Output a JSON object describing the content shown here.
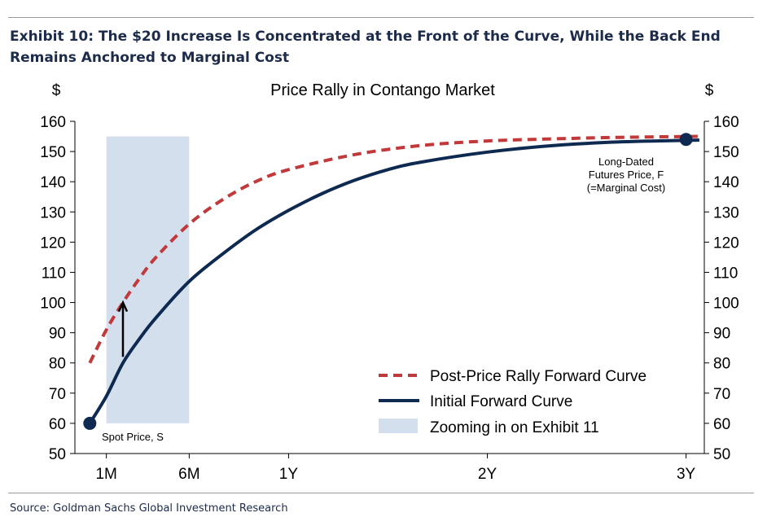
{
  "exhibit": {
    "title": "Exhibit 10: The $20 Increase Is Concentrated at the Front of the Curve, While the Back End Remains Anchored to Marginal Cost",
    "source": "Source: Goldman Sachs Global Investment Research"
  },
  "chart_data": {
    "type": "line",
    "title": "Price Rally in Contango Market",
    "ylabel_left": "$",
    "ylabel_right": "$",
    "ylim": [
      50,
      160
    ],
    "y_ticks": [
      50,
      60,
      70,
      80,
      90,
      100,
      110,
      120,
      130,
      140,
      150,
      160
    ],
    "x_ticks": [
      {
        "label": "1M",
        "month": 1
      },
      {
        "label": "6M",
        "month": 6
      },
      {
        "label": "1Y",
        "month": 12
      },
      {
        "label": "2Y",
        "month": 24
      },
      {
        "label": "3Y",
        "month": 36
      }
    ],
    "xlim_months": [
      -0.9,
      37.1
    ],
    "grid": false,
    "legend_position": "bottom-right",
    "series": [
      {
        "name": "Post-Price Rally Forward Curve",
        "style": "dashed",
        "color": "#c0393b",
        "x_months": [
          0,
          1,
          2,
          3,
          4,
          6,
          8,
          10,
          12,
          16,
          20,
          24,
          28,
          32,
          36.8
        ],
        "values": [
          80,
          91,
          100,
          108,
          115,
          126,
          134,
          140,
          144,
          149,
          152,
          153.5,
          154.2,
          154.7,
          155
        ]
      },
      {
        "name": "Initial Forward Curve",
        "style": "solid",
        "color": "#0e2a50",
        "x_months": [
          0,
          1,
          2,
          3,
          4,
          6,
          8,
          10,
          12,
          14,
          16,
          18,
          20,
          24,
          28,
          32,
          36.8
        ],
        "values": [
          60,
          69,
          80,
          88,
          95,
          107,
          116,
          124,
          130.5,
          136,
          140.5,
          144,
          146.5,
          149.8,
          152,
          153.2,
          153.8
        ]
      }
    ],
    "shaded_region": {
      "name": "Zooming in on Exhibit 11",
      "x_months": [
        1,
        6
      ],
      "y": [
        60,
        155
      ],
      "color": "#d4dfee"
    },
    "markers": [
      {
        "label": "Spot Price, S",
        "x_month": 0,
        "value": 60
      },
      {
        "label_lines": [
          "Long-Dated",
          "Futures Price, F",
          "(=Marginal Cost)"
        ],
        "x_month": 36,
        "value": 154
      }
    ],
    "arrow": {
      "x_month": 2,
      "from": 82,
      "to": 100
    }
  },
  "colors": {
    "dashed": "#c0393b",
    "solid": "#0e2a50",
    "shade": "#d4dfee",
    "title_text": "#1c2b4a"
  }
}
